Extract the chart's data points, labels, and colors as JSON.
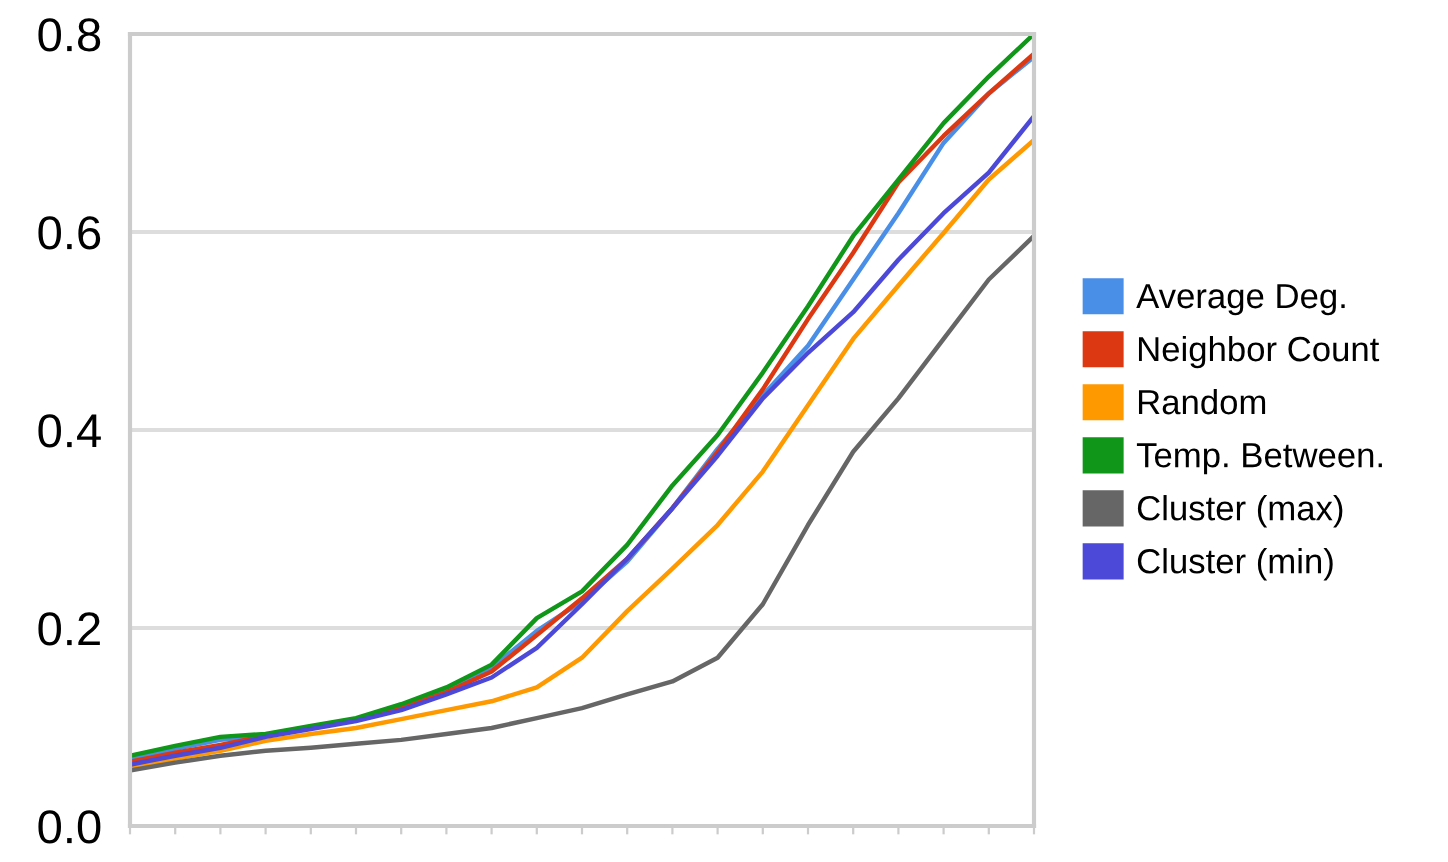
{
  "chart_data": {
    "type": "line",
    "categories": [
      null,
      null,
      null,
      null,
      null,
      null,
      null,
      null,
      null,
      null,
      null,
      null,
      null,
      null,
      null,
      null,
      null,
      null,
      null,
      null,
      null
    ],
    "series": [
      {
        "name": "Average Deg.",
        "color": "#4a8fe7",
        "values": [
          0.068,
          0.078,
          0.087,
          0.091,
          0.099,
          0.108,
          0.12,
          0.137,
          0.16,
          0.197,
          0.227,
          0.267,
          0.321,
          0.381,
          0.435,
          0.485,
          0.552,
          0.619,
          0.69,
          0.74,
          0.777
        ]
      },
      {
        "name": "Neighbor Count",
        "color": "#dc3912",
        "values": [
          0.065,
          0.074,
          0.082,
          0.091,
          0.099,
          0.107,
          0.119,
          0.135,
          0.156,
          0.193,
          0.23,
          0.27,
          0.321,
          0.378,
          0.441,
          0.512,
          0.579,
          0.65,
          0.697,
          0.74,
          0.78
        ]
      },
      {
        "name": "Random",
        "color": "#ff9900",
        "values": [
          0.059,
          0.068,
          0.076,
          0.086,
          0.093,
          0.099,
          0.108,
          0.117,
          0.126,
          0.14,
          0.17,
          0.217,
          0.26,
          0.304,
          0.358,
          0.425,
          0.492,
          0.546,
          0.599,
          0.653,
          0.693
        ]
      },
      {
        "name": "Temp. Between.",
        "color": "#109618",
        "values": [
          0.071,
          0.081,
          0.09,
          0.093,
          0.101,
          0.109,
          0.123,
          0.14,
          0.163,
          0.21,
          0.237,
          0.284,
          0.344,
          0.395,
          0.458,
          0.525,
          0.596,
          0.653,
          0.71,
          0.757,
          0.8
        ]
      },
      {
        "name": "Cluster (max)",
        "color": "#666666",
        "values": [
          0.056,
          0.064,
          0.071,
          0.076,
          0.079,
          0.083,
          0.087,
          0.093,
          0.099,
          0.109,
          0.119,
          0.133,
          0.146,
          0.17,
          0.224,
          0.304,
          0.378,
          0.432,
          0.492,
          0.552,
          0.596
        ]
      },
      {
        "name": "Cluster (min)",
        "color": "#4c48d8",
        "values": [
          0.062,
          0.071,
          0.079,
          0.09,
          0.098,
          0.106,
          0.117,
          0.133,
          0.15,
          0.18,
          0.224,
          0.27,
          0.321,
          0.374,
          0.432,
          0.478,
          0.519,
          0.572,
          0.619,
          0.66,
          0.717
        ]
      }
    ],
    "ylim": [
      0,
      0.8
    ],
    "yticks": [
      {
        "value": 0,
        "label": "0.0"
      },
      {
        "value": 0.2,
        "label": "0.2"
      },
      {
        "value": 0.4,
        "label": "0.4"
      },
      {
        "value": 0.6,
        "label": "0.6"
      },
      {
        "value": 0.8,
        "label": "0.8"
      }
    ],
    "grid": "y",
    "legend": "right",
    "tick_labels": "y"
  }
}
